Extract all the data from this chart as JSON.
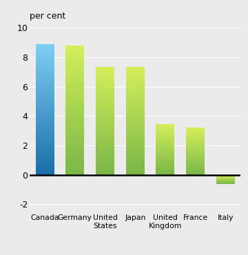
{
  "categories": [
    "Canada",
    "Germany",
    "United\nStates",
    "Japan",
    "United\nKingdom",
    "France",
    "Italy"
  ],
  "values": [
    8.9,
    8.8,
    7.35,
    7.35,
    3.45,
    3.2,
    -0.6
  ],
  "canada_color_top": "#7ecef4",
  "canada_color_bottom": "#1a6fa8",
  "green_color_top": "#d4ef5a",
  "green_color_bottom": "#7ab648",
  "ylabel": "per cent",
  "ylim": [
    -2.5,
    10.5
  ],
  "yticks": [
    -2,
    0,
    2,
    4,
    6,
    8,
    10
  ],
  "background_color": "#ebebeb",
  "grid_color": "#ffffff"
}
